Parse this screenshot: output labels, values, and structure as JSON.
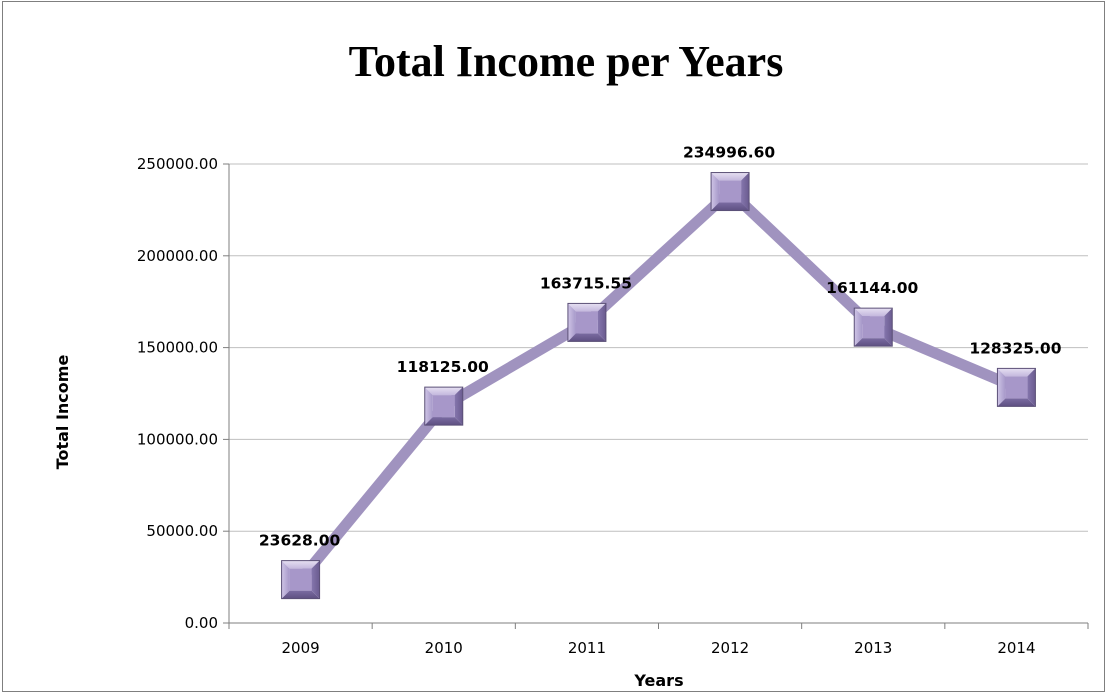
{
  "chart_data": {
    "type": "line",
    "title": "Total Income per Years",
    "xlabel": "Years",
    "ylabel": "Total Income",
    "categories": [
      "2009",
      "2010",
      "2011",
      "2012",
      "2013",
      "2014"
    ],
    "series": [
      {
        "values": [
          23628.0,
          118125.0,
          163715.55,
          234996.6,
          161144.0,
          128325.0
        ],
        "labels": [
          "23628.00",
          "118125.00",
          "163715.55",
          "234996.60",
          "161144.00",
          "128325.00"
        ]
      }
    ],
    "ylim": [
      0,
      250000
    ],
    "yticks": [
      "0.00",
      "50000.00",
      "100000.00",
      "150000.00",
      "200000.00",
      "250000.00"
    ],
    "grid": true,
    "legend": "none",
    "colors": {
      "line": "#a093bf",
      "marker_light": "#e2dcef",
      "marker_mid": "#a797c9",
      "marker_dark": "#6e5f92",
      "marker_edge": "#5b5077",
      "grid": "#bfbfbf",
      "axis": "#7f7f7f"
    }
  }
}
